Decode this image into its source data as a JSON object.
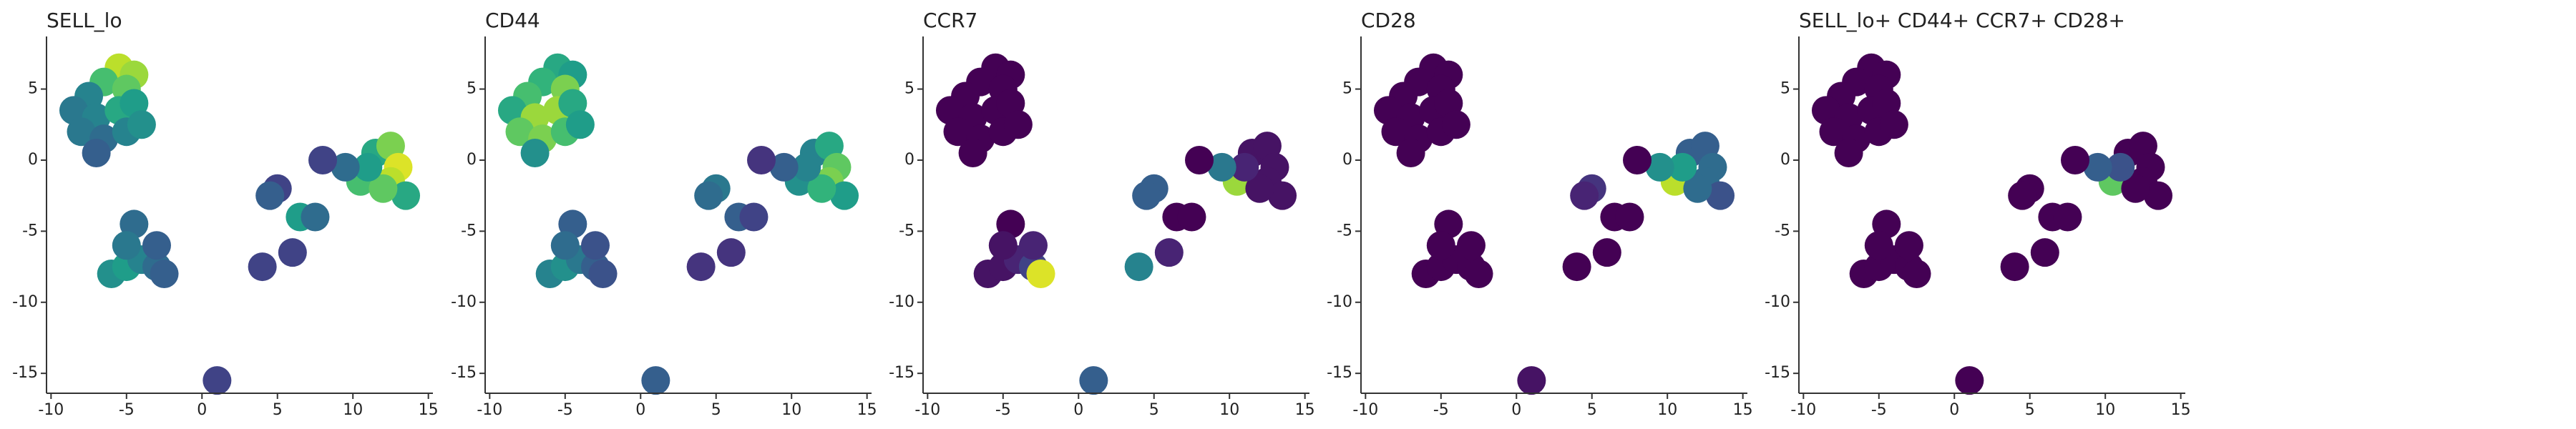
{
  "chart_data": [
    {
      "type": "scatter",
      "title": "SELL_lo",
      "colormap": "viridis",
      "x": [
        -5.5,
        -4.5,
        -6.5,
        -5,
        -7.5,
        -8.5,
        -7,
        -5.5,
        -4.5,
        -8,
        -6.5,
        -5,
        -7,
        -4,
        10.5,
        11.5,
        12.5,
        13,
        12.5,
        13.5,
        12,
        11,
        9.5,
        8,
        5,
        4.5,
        6.5,
        7.5,
        6,
        4,
        -6,
        -5,
        -4,
        -3,
        -2.5,
        -4.5,
        -5,
        -3,
        1
      ],
      "y": [
        6.5,
        6,
        5.5,
        5,
        4.5,
        3.5,
        3,
        3.5,
        4,
        2,
        1.5,
        2,
        0.5,
        2.5,
        -1.5,
        0.5,
        1,
        -0.5,
        -1.5,
        -2.5,
        -2,
        -0.5,
        -0.5,
        0,
        -2,
        -2.5,
        -4,
        -4,
        -6.5,
        -7.5,
        -8,
        -7.5,
        -7,
        -7.5,
        -8,
        -4.5,
        -6,
        -6,
        -15.5
      ],
      "values": [
        0.9,
        0.85,
        0.7,
        0.75,
        0.45,
        0.4,
        0.45,
        0.6,
        0.55,
        0.4,
        0.35,
        0.45,
        0.3,
        0.5,
        0.7,
        0.6,
        0.8,
        0.95,
        0.9,
        0.6,
        0.75,
        0.55,
        0.35,
        0.2,
        0.2,
        0.3,
        0.55,
        0.35,
        0.2,
        0.2,
        0.5,
        0.55,
        0.45,
        0.35,
        0.3,
        0.35,
        0.4,
        0.3,
        0.2
      ],
      "xlim": [
        -10.3,
        15.3
      ],
      "ylim": [
        -16.4,
        8.7
      ],
      "xticks": [
        -10,
        -5,
        0,
        5,
        10,
        15
      ],
      "yticks": [
        -15,
        -10,
        -5,
        0,
        5
      ]
    },
    {
      "type": "scatter",
      "title": "CD44",
      "colormap": "viridis",
      "x": [
        -5.5,
        -4.5,
        -6.5,
        -5,
        -7.5,
        -8.5,
        -7,
        -5.5,
        -4.5,
        -8,
        -6.5,
        -5,
        -7,
        -4,
        10.5,
        11.5,
        12.5,
        13,
        12.5,
        13.5,
        12,
        11,
        9.5,
        8,
        5,
        4.5,
        6.5,
        7.5,
        6,
        4,
        -6,
        -5,
        -4,
        -3,
        -2.5,
        -4.5,
        -5,
        -3,
        1
      ],
      "y": [
        6.5,
        6,
        5.5,
        5,
        4.5,
        3.5,
        3,
        3.5,
        4,
        2,
        1.5,
        2,
        0.5,
        2.5,
        -1.5,
        0.5,
        1,
        -0.5,
        -1.5,
        -2.5,
        -2,
        -0.5,
        -0.5,
        0,
        -2,
        -2.5,
        -4,
        -4,
        -6.5,
        -7.5,
        -8,
        -7.5,
        -7,
        -7.5,
        -8,
        -4.5,
        -6,
        -6,
        -15.5
      ],
      "values": [
        0.6,
        0.55,
        0.65,
        0.8,
        0.7,
        0.6,
        0.85,
        0.85,
        0.6,
        0.75,
        0.8,
        0.7,
        0.5,
        0.55,
        0.5,
        0.45,
        0.6,
        0.75,
        0.8,
        0.55,
        0.65,
        0.45,
        0.3,
        0.15,
        0.4,
        0.35,
        0.3,
        0.2,
        0.15,
        0.15,
        0.45,
        0.5,
        0.4,
        0.3,
        0.25,
        0.3,
        0.35,
        0.25,
        0.3
      ],
      "xlim": [
        -10.3,
        15.3
      ],
      "ylim": [
        -16.4,
        8.7
      ],
      "xticks": [
        -10,
        -5,
        0,
        5,
        10,
        15
      ],
      "yticks": [
        -15,
        -10,
        -5,
        0,
        5
      ]
    },
    {
      "type": "scatter",
      "title": "CCR7",
      "colormap": "viridis",
      "x": [
        -5.5,
        -4.5,
        -6.5,
        -5,
        -7.5,
        -8.5,
        -7,
        -5.5,
        -4.5,
        -8,
        -6.5,
        -5,
        -7,
        -4,
        10.5,
        11.5,
        12.5,
        13,
        12.5,
        13.5,
        12,
        11,
        9.5,
        8,
        5,
        4.5,
        6.5,
        7.5,
        6,
        4,
        -6,
        -5,
        -4,
        -3,
        -2.5,
        -4.5,
        -5,
        -3,
        1
      ],
      "y": [
        6.5,
        6,
        5.5,
        5,
        4.5,
        3.5,
        3,
        3.5,
        4,
        2,
        1.5,
        2,
        0.5,
        2.5,
        -1.5,
        0.5,
        1,
        -0.5,
        -1.5,
        -2.5,
        -2,
        -0.5,
        -0.5,
        0,
        -2,
        -2.5,
        -4,
        -4,
        -6.5,
        -7.5,
        -8,
        -7.5,
        -7,
        -7.5,
        -8,
        -4.5,
        -6,
        -6,
        -15.5
      ],
      "values": [
        0,
        0,
        0,
        0,
        0,
        0,
        0,
        0,
        0,
        0,
        0,
        0,
        0,
        0,
        0.85,
        0.05,
        0.05,
        0.05,
        0.05,
        0.05,
        0.05,
        0.1,
        0.4,
        0,
        0.3,
        0.3,
        0,
        0,
        0.1,
        0.45,
        0.05,
        0.05,
        0.1,
        0.2,
        0.95,
        0,
        0.05,
        0.1,
        0.3
      ],
      "xlim": [
        -10.3,
        15.3
      ],
      "ylim": [
        -16.4,
        8.7
      ],
      "xticks": [
        -10,
        -5,
        0,
        5,
        10,
        15
      ],
      "yticks": [
        -15,
        -10,
        -5,
        0,
        5
      ]
    },
    {
      "type": "scatter",
      "title": "CD28",
      "colormap": "viridis",
      "x": [
        -5.5,
        -4.5,
        -6.5,
        -5,
        -7.5,
        -8.5,
        -7,
        -5.5,
        -4.5,
        -8,
        -6.5,
        -5,
        -7,
        -4,
        10.5,
        11.5,
        12.5,
        13,
        12.5,
        13.5,
        12,
        11,
        9.5,
        8,
        5,
        4.5,
        6.5,
        7.5,
        6,
        4,
        -6,
        -5,
        -4,
        -3,
        -2.5,
        -4.5,
        -5,
        -3,
        1
      ],
      "y": [
        6.5,
        6,
        5.5,
        5,
        4.5,
        3.5,
        3,
        3.5,
        4,
        2,
        1.5,
        2,
        0.5,
        2.5,
        -1.5,
        0.5,
        1,
        -0.5,
        -1.5,
        -2.5,
        -2,
        -0.5,
        -0.5,
        0,
        -2,
        -2.5,
        -4,
        -4,
        -6.5,
        -7.5,
        -8,
        -7.5,
        -7,
        -7.5,
        -8,
        -4.5,
        -6,
        -6,
        -15.5
      ],
      "values": [
        0,
        0,
        0,
        0,
        0,
        0,
        0,
        0,
        0,
        0,
        0,
        0,
        0,
        0,
        0.9,
        0.3,
        0.3,
        0.35,
        0.35,
        0.25,
        0.35,
        0.55,
        0.5,
        0,
        0.15,
        0.1,
        0,
        0,
        0,
        0,
        0,
        0,
        0,
        0,
        0,
        0,
        0,
        0,
        0.05
      ],
      "xlim": [
        -10.3,
        15.3
      ],
      "ylim": [
        -16.4,
        8.7
      ],
      "xticks": [
        -10,
        -5,
        0,
        5,
        10,
        15
      ],
      "yticks": [
        -15,
        -10,
        -5,
        0,
        5
      ]
    },
    {
      "type": "scatter",
      "title": "SELL_lo+ CD44+ CCR7+ CD28+",
      "colormap": "viridis",
      "x": [
        -5.5,
        -4.5,
        -6.5,
        -5,
        -7.5,
        -8.5,
        -7,
        -5.5,
        -4.5,
        -8,
        -6.5,
        -5,
        -7,
        -4,
        10.5,
        11.5,
        12.5,
        13,
        12.5,
        13.5,
        12,
        11,
        9.5,
        8,
        5,
        4.5,
        6.5,
        7.5,
        6,
        4,
        -6,
        -5,
        -4,
        -3,
        -2.5,
        -4.5,
        -5,
        -3,
        1
      ],
      "y": [
        6.5,
        6,
        5.5,
        5,
        4.5,
        3.5,
        3,
        3.5,
        4,
        2,
        1.5,
        2,
        0.5,
        2.5,
        -1.5,
        0.5,
        1,
        -0.5,
        -1.5,
        -2.5,
        -2,
        -0.5,
        -0.5,
        0,
        -2,
        -2.5,
        -4,
        -4,
        -6.5,
        -7.5,
        -8,
        -7.5,
        -7,
        -7.5,
        -8,
        -4.5,
        -6,
        -6,
        -15.5
      ],
      "values": [
        0,
        0,
        0,
        0,
        0,
        0,
        0,
        0,
        0,
        0,
        0,
        0,
        0,
        0,
        0.75,
        0,
        0,
        0,
        0,
        0,
        0,
        0.25,
        0.3,
        0,
        0,
        0,
        0,
        0,
        0,
        0,
        0,
        0,
        0,
        0,
        0,
        0,
        0,
        0,
        0
      ],
      "xlim": [
        -10.3,
        15.3
      ],
      "ylim": [
        -16.4,
        8.7
      ],
      "xticks": [
        -10,
        -5,
        0,
        5,
        10,
        15
      ],
      "yticks": [
        -15,
        -10,
        -5,
        0,
        5
      ]
    }
  ]
}
